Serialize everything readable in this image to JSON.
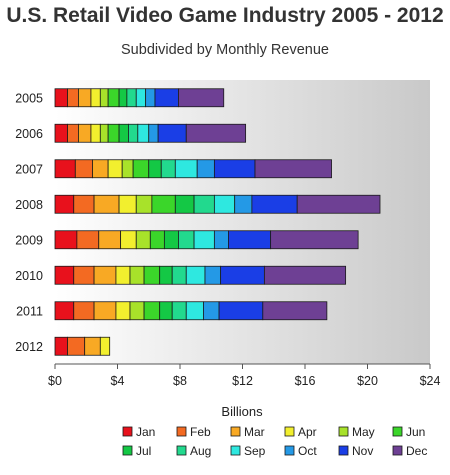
{
  "chart_data": {
    "type": "bar",
    "orientation": "horizontal",
    "stacked": true,
    "title": "U.S. Retail Video Game Industry 2005 - 2012",
    "subtitle": "Subdivided by Monthly Revenue",
    "xlabel": "Billions",
    "ylabel": "",
    "xlim": [
      0,
      24
    ],
    "x_ticks": [
      0,
      4,
      8,
      12,
      16,
      20,
      24
    ],
    "x_tick_labels": [
      "$0",
      "$4",
      "$8",
      "$12",
      "$16",
      "$20",
      "$24"
    ],
    "grid": false,
    "legend_position": "bottom",
    "categories": [
      "2005",
      "2006",
      "2007",
      "2008",
      "2009",
      "2010",
      "2011",
      "2012"
    ],
    "series": [
      {
        "name": "Jan",
        "color": "#e8111c",
        "values": [
          0.8,
          0.8,
          1.3,
          1.2,
          1.4,
          1.2,
          1.2,
          0.8
        ]
      },
      {
        "name": "Feb",
        "color": "#f36a22",
        "values": [
          0.7,
          0.7,
          1.1,
          1.3,
          1.4,
          1.3,
          1.3,
          1.1
        ]
      },
      {
        "name": "Mar",
        "color": "#f8a924",
        "values": [
          0.8,
          0.8,
          1.0,
          1.6,
          1.4,
          1.4,
          1.4,
          1.0
        ]
      },
      {
        "name": "Apr",
        "color": "#f2ef2e",
        "values": [
          0.6,
          0.6,
          0.9,
          1.1,
          1.0,
          0.9,
          0.9,
          0.6
        ]
      },
      {
        "name": "May",
        "color": "#a8e22a",
        "values": [
          0.5,
          0.5,
          0.7,
          1.0,
          0.9,
          0.9,
          0.9,
          0
        ]
      },
      {
        "name": "Jun",
        "color": "#3bd62a",
        "values": [
          0.7,
          0.7,
          1.0,
          1.5,
          0.9,
          1.0,
          1.0,
          0
        ]
      },
      {
        "name": "Jul",
        "color": "#14c845",
        "values": [
          0.5,
          0.6,
          0.8,
          1.2,
          0.9,
          0.8,
          0.8,
          0
        ]
      },
      {
        "name": "Aug",
        "color": "#22d98e",
        "values": [
          0.6,
          0.6,
          0.9,
          1.3,
          1.0,
          0.9,
          0.9,
          0
        ]
      },
      {
        "name": "Sep",
        "color": "#2ee8e0",
        "values": [
          0.6,
          0.7,
          1.4,
          1.3,
          1.3,
          1.2,
          1.1,
          0
        ]
      },
      {
        "name": "Oct",
        "color": "#2499e6",
        "values": [
          0.6,
          0.6,
          1.1,
          1.1,
          0.9,
          1.0,
          1.0,
          0
        ]
      },
      {
        "name": "Nov",
        "color": "#1a3ee6",
        "values": [
          1.5,
          1.8,
          2.6,
          2.9,
          2.7,
          2.8,
          2.8,
          0
        ]
      },
      {
        "name": "Dec",
        "color": "#6e4094",
        "values": [
          2.9,
          3.8,
          4.9,
          5.3,
          5.6,
          5.2,
          4.1,
          0
        ]
      }
    ]
  }
}
